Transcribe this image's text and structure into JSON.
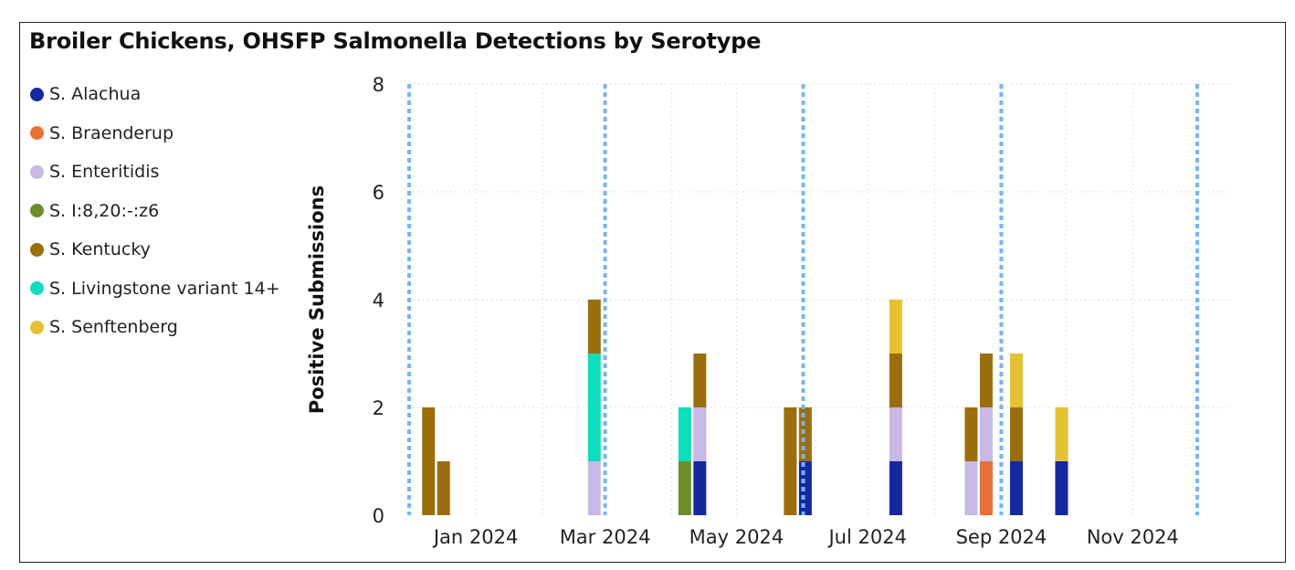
{
  "title": "Broiler Chickens, OHSFP Salmonella Detections by Serotype",
  "legend": [
    {
      "label": "S. Alachua",
      "color": "#1428a0"
    },
    {
      "label": "S. Braenderup",
      "color": "#e8703a"
    },
    {
      "label": "S. Enteritidis",
      "color": "#c7b8e6"
    },
    {
      "label": "S. I:8,20:-:z6",
      "color": "#6f8c2a"
    },
    {
      "label": "S. Kentucky",
      "color": "#9a6e0c"
    },
    {
      "label": "S. Livingstone variant 14+",
      "color": "#10dcbe"
    },
    {
      "label": "S. Senftenberg",
      "color": "#e6c134"
    }
  ],
  "chart_data": {
    "type": "bar",
    "stacked": true,
    "title": "Broiler Chickens, OHSFP Salmonella Detections by Serotype",
    "xlabel": "",
    "ylabel": "Positive Submissions",
    "ylim": [
      0,
      8
    ],
    "yticks": [
      "0",
      "2",
      "4",
      "6",
      "8"
    ],
    "xlim": [
      "2023-12-01",
      "2024-12-15"
    ],
    "xticks": [
      {
        "date": "2024-01-01",
        "label": "Jan 2024"
      },
      {
        "date": "2024-03-01",
        "label": "Mar 2024"
      },
      {
        "date": "2024-05-01",
        "label": "May 2024"
      },
      {
        "date": "2024-07-01",
        "label": "Jul 2024"
      },
      {
        "date": "2024-09-01",
        "label": "Sep 2024"
      },
      {
        "date": "2024-11-01",
        "label": "Nov 2024"
      }
    ],
    "reference_lines": [
      "2023-12-01",
      "2024-03-01",
      "2024-06-01",
      "2024-09-01",
      "2024-12-01"
    ],
    "grid": true,
    "legend_position": "left",
    "categories": [
      "2023-12-10",
      "2023-12-17",
      "2024-02-25",
      "2024-04-07",
      "2024-04-14",
      "2024-05-26",
      "2024-06-02",
      "2024-07-14",
      "2024-08-18",
      "2024-08-25",
      "2024-09-08",
      "2024-09-29"
    ],
    "series": [
      {
        "name": "S. Alachua",
        "values": [
          0,
          0,
          0,
          0,
          1,
          0,
          1,
          1,
          0,
          0,
          1,
          1
        ]
      },
      {
        "name": "S. Braenderup",
        "values": [
          0,
          0,
          0,
          0,
          0,
          0,
          0,
          0,
          0,
          1,
          0,
          0
        ]
      },
      {
        "name": "S. Enteritidis",
        "values": [
          0,
          0,
          1,
          0,
          1,
          0,
          0,
          1,
          1,
          1,
          0,
          0
        ]
      },
      {
        "name": "S. I:8,20:-:z6",
        "values": [
          0,
          0,
          0,
          1,
          0,
          0,
          0,
          0,
          0,
          0,
          0,
          0
        ]
      },
      {
        "name": "S. Kentucky",
        "values": [
          2,
          1,
          1,
          0,
          1,
          2,
          1,
          1,
          1,
          1,
          1,
          0
        ]
      },
      {
        "name": "S. Livingstone variant 14+",
        "values": [
          0,
          0,
          2,
          1,
          0,
          0,
          0,
          0,
          0,
          0,
          0,
          0
        ]
      },
      {
        "name": "S. Senftenberg",
        "values": [
          0,
          0,
          0,
          0,
          0,
          0,
          0,
          1,
          0,
          0,
          1,
          1
        ]
      }
    ]
  }
}
